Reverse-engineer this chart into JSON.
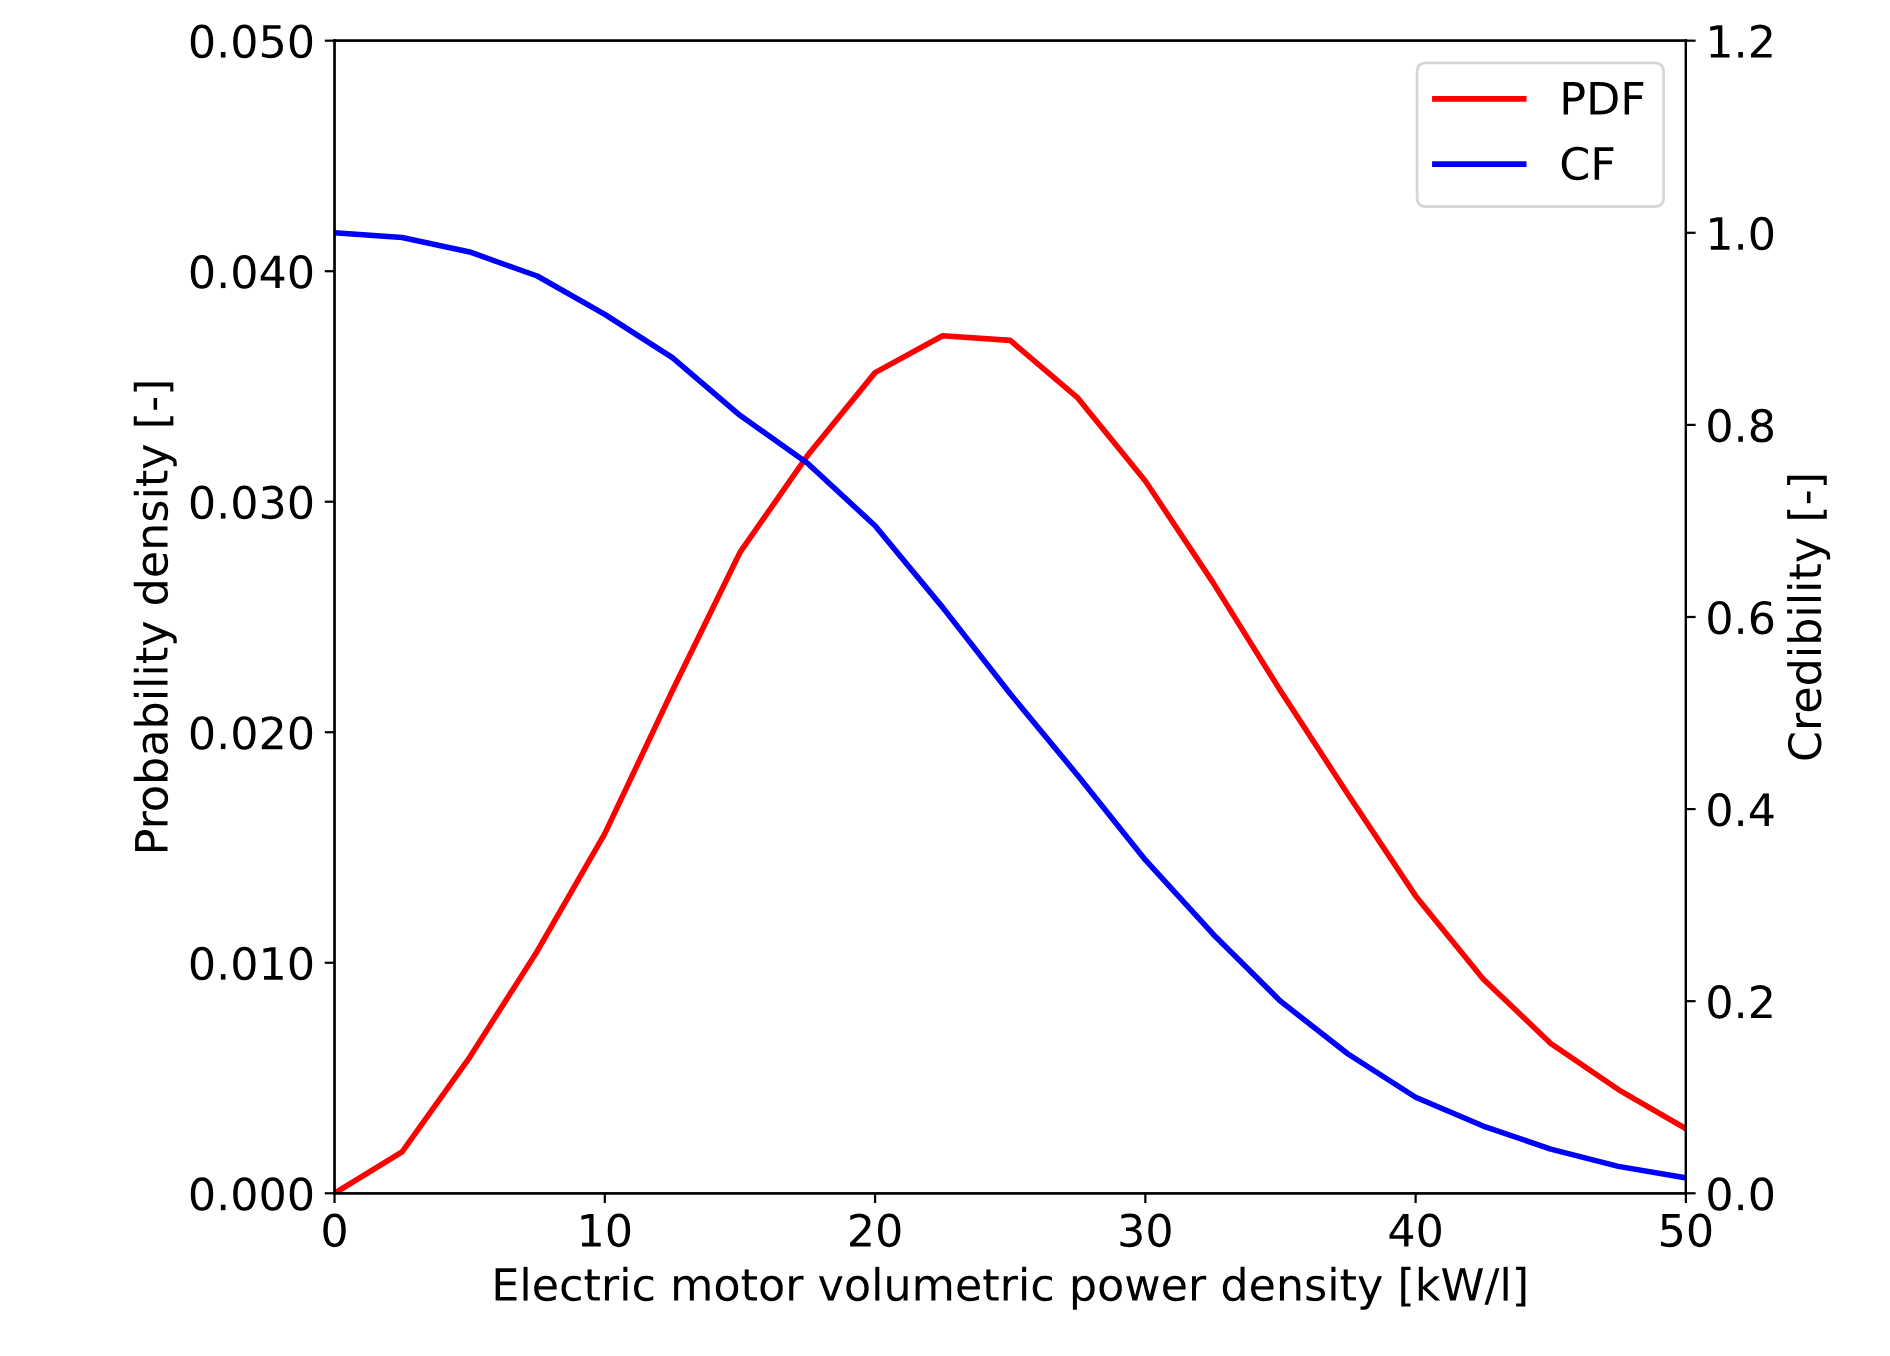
{
  "chart_data": {
    "type": "line",
    "xlabel": "Electric motor volumetric power density [kW/l]",
    "ylabel": "Probability density [-]",
    "y2label": "Credibility [-]",
    "x": [
      0,
      2.5,
      5,
      7.5,
      10,
      12.5,
      15,
      17.5,
      20,
      22.5,
      25,
      27.5,
      30,
      32.5,
      35,
      37.5,
      40,
      42.5,
      45,
      47.5,
      50
    ],
    "series": [
      {
        "name": "PDF",
        "color": "#ff0000",
        "values": [
          0.0,
          0.0018,
          0.0059,
          0.0105,
          0.0156,
          0.0218,
          0.0278,
          0.032,
          0.0356,
          0.0372,
          0.037,
          0.0345,
          0.0309,
          0.0265,
          0.0218,
          0.0173,
          0.0129,
          0.0093,
          0.0065,
          0.0045,
          0.0028
        ]
      },
      {
        "name": "CF",
        "color": "#0000ff",
        "axis": "y2",
        "values": [
          1.0,
          0.995,
          0.98,
          0.955,
          0.915,
          0.87,
          0.81,
          0.76,
          0.695,
          0.61,
          0.52,
          0.435,
          0.347,
          0.27,
          0.2,
          0.145,
          0.1,
          0.07,
          0.046,
          0.028,
          0.016
        ]
      }
    ],
    "xlim": [
      0,
      50
    ],
    "xticks": [
      0,
      10,
      20,
      30,
      40,
      50
    ],
    "ylim": [
      0,
      0.05
    ],
    "yticks": [
      {
        "value": 0,
        "label": "0.000"
      },
      {
        "value": 0.01,
        "label": "0.010"
      },
      {
        "value": 0.02,
        "label": "0.020"
      },
      {
        "value": 0.03,
        "label": "0.030"
      },
      {
        "value": 0.04,
        "label": "0.040"
      },
      {
        "value": 0.05,
        "label": "0.050"
      }
    ],
    "y2lim": [
      0,
      1.2
    ],
    "y2ticks": [
      {
        "value": 0,
        "label": "0.0"
      },
      {
        "value": 0.2,
        "label": "0.2"
      },
      {
        "value": 0.4,
        "label": "0.4"
      },
      {
        "value": 0.6,
        "label": "0.6"
      },
      {
        "value": 0.8,
        "label": "0.8"
      },
      {
        "value": 1.0,
        "label": "1.0"
      },
      {
        "value": 1.2,
        "label": "1.2"
      }
    ],
    "legend": "top right",
    "grid": false,
    "marker": "none",
    "line_style": "solid"
  }
}
